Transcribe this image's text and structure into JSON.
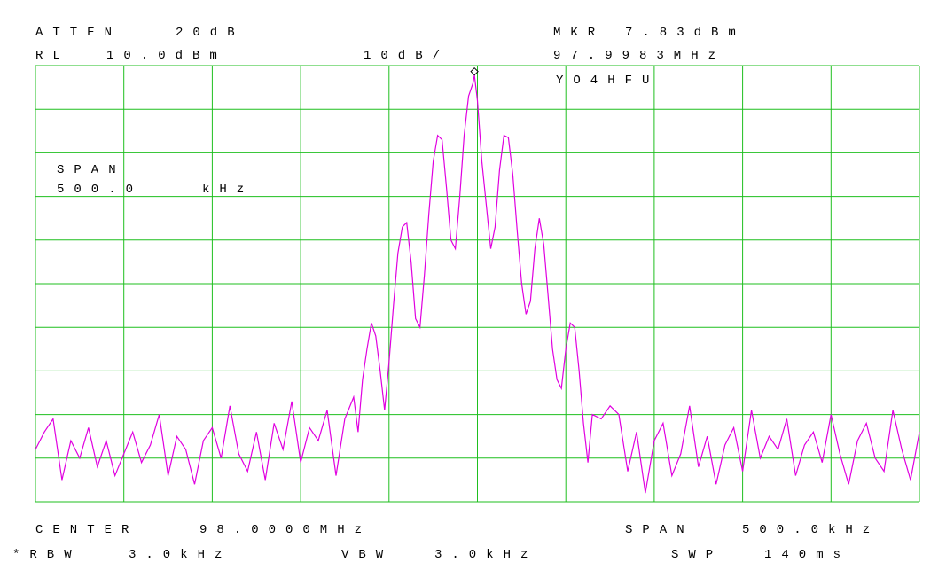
{
  "chart_data": {
    "type": "line",
    "color": "#e000e0",
    "grid": true,
    "grid_color": "#1fbf1f",
    "xlim": [
      97.75,
      98.25
    ],
    "ylim": [
      -90,
      10
    ],
    "xticks": [
      97.75,
      97.8,
      97.85,
      97.9,
      97.95,
      98.0,
      98.05,
      98.1,
      98.15,
      98.2,
      98.25
    ],
    "yticks": [
      -90,
      -80,
      -70,
      -60,
      -50,
      -40,
      -30,
      -20,
      -10,
      0,
      10
    ],
    "annotations": [
      "ATTEN",
      "20dB",
      "MKR",
      "RL",
      "10.0dBm",
      "10dB/",
      "YO4HFU",
      "SPAN",
      "500.0",
      "kHz",
      "CENTER",
      "98.0000MHz",
      "SPAN",
      "500.0kHz",
      "*RBW",
      "3.0kHz",
      "VBW",
      "3.0kHz",
      "SWP",
      "140ms"
    ],
    "marker": {
      "x": 97.9983,
      "y": 7.83,
      "x_label": "97.9983MHz",
      "y_label": "7.83dBm"
    },
    "x": [
      97.75,
      97.755,
      97.76,
      97.765,
      97.77,
      97.775,
      97.78,
      97.785,
      97.79,
      97.795,
      97.8,
      97.805,
      97.81,
      97.815,
      97.82,
      97.825,
      97.83,
      97.835,
      97.84,
      97.845,
      97.85,
      97.855,
      97.86,
      97.865,
      97.87,
      97.875,
      97.88,
      97.885,
      97.89,
      97.895,
      97.9,
      97.905,
      97.91,
      97.915,
      97.92,
      97.925,
      97.93,
      97.9325,
      97.935,
      97.9375,
      97.94,
      97.9425,
      97.945,
      97.9475,
      97.95,
      97.9525,
      97.955,
      97.9575,
      97.96,
      97.9625,
      97.965,
      97.9675,
      97.97,
      97.9725,
      97.975,
      97.9775,
      97.98,
      97.9825,
      97.985,
      97.9875,
      97.99,
      97.9925,
      97.995,
      97.9975,
      97.9983,
      98.0,
      98.0025,
      98.005,
      98.0075,
      98.01,
      98.0125,
      98.015,
      98.0175,
      98.02,
      98.0225,
      98.025,
      98.0275,
      98.03,
      98.0325,
      98.035,
      98.0375,
      98.04,
      98.0425,
      98.045,
      98.0475,
      98.05,
      98.0525,
      98.055,
      98.0575,
      98.06,
      98.0625,
      98.065,
      98.07,
      98.075,
      98.08,
      98.085,
      98.09,
      98.095,
      98.1,
      98.105,
      98.11,
      98.115,
      98.12,
      98.125,
      98.13,
      98.135,
      98.14,
      98.145,
      98.15,
      98.155,
      98.16,
      98.165,
      98.17,
      98.175,
      98.18,
      98.185,
      98.19,
      98.195,
      98.2,
      98.205,
      98.21,
      98.215,
      98.22,
      98.225,
      98.23,
      98.235,
      98.24,
      98.245,
      98.25
    ],
    "values": [
      -78,
      -74,
      -71,
      -85,
      -76,
      -80,
      -73,
      -82,
      -76,
      -84,
      -79,
      -74,
      -81,
      -77,
      -70,
      -84,
      -75,
      -78,
      -86,
      -76,
      -73,
      -80,
      -68,
      -79,
      -83,
      -74,
      -85,
      -72,
      -78,
      -67,
      -81,
      -73,
      -76,
      -69,
      -84,
      -71,
      -66,
      -74,
      -62,
      -55,
      -49,
      -52,
      -60,
      -69,
      -58,
      -45,
      -33,
      -27,
      -26,
      -35,
      -48,
      -50,
      -38,
      -24,
      -12,
      -6,
      -7,
      -18,
      -30,
      -32,
      -20,
      -6,
      3,
      6,
      7.83,
      2,
      -12,
      -22,
      -32,
      -27,
      -14,
      -6,
      -6.5,
      -15,
      -28,
      -40,
      -47,
      -44,
      -32,
      -25,
      -31,
      -43,
      -55,
      -62,
      -64,
      -55,
      -49,
      -50,
      -60,
      -72,
      -81,
      -70,
      -71,
      -68,
      -70,
      -83,
      -74,
      -88,
      -76,
      -72,
      -84,
      -79,
      -68,
      -82,
      -75,
      -86,
      -77,
      -73,
      -83,
      -69,
      -80,
      -75,
      -78,
      -71,
      -84,
      -77,
      -74,
      -81,
      -70,
      -79,
      -86,
      -76,
      -72,
      -80,
      -83,
      -69,
      -78,
      -85,
      -74
    ]
  }
}
